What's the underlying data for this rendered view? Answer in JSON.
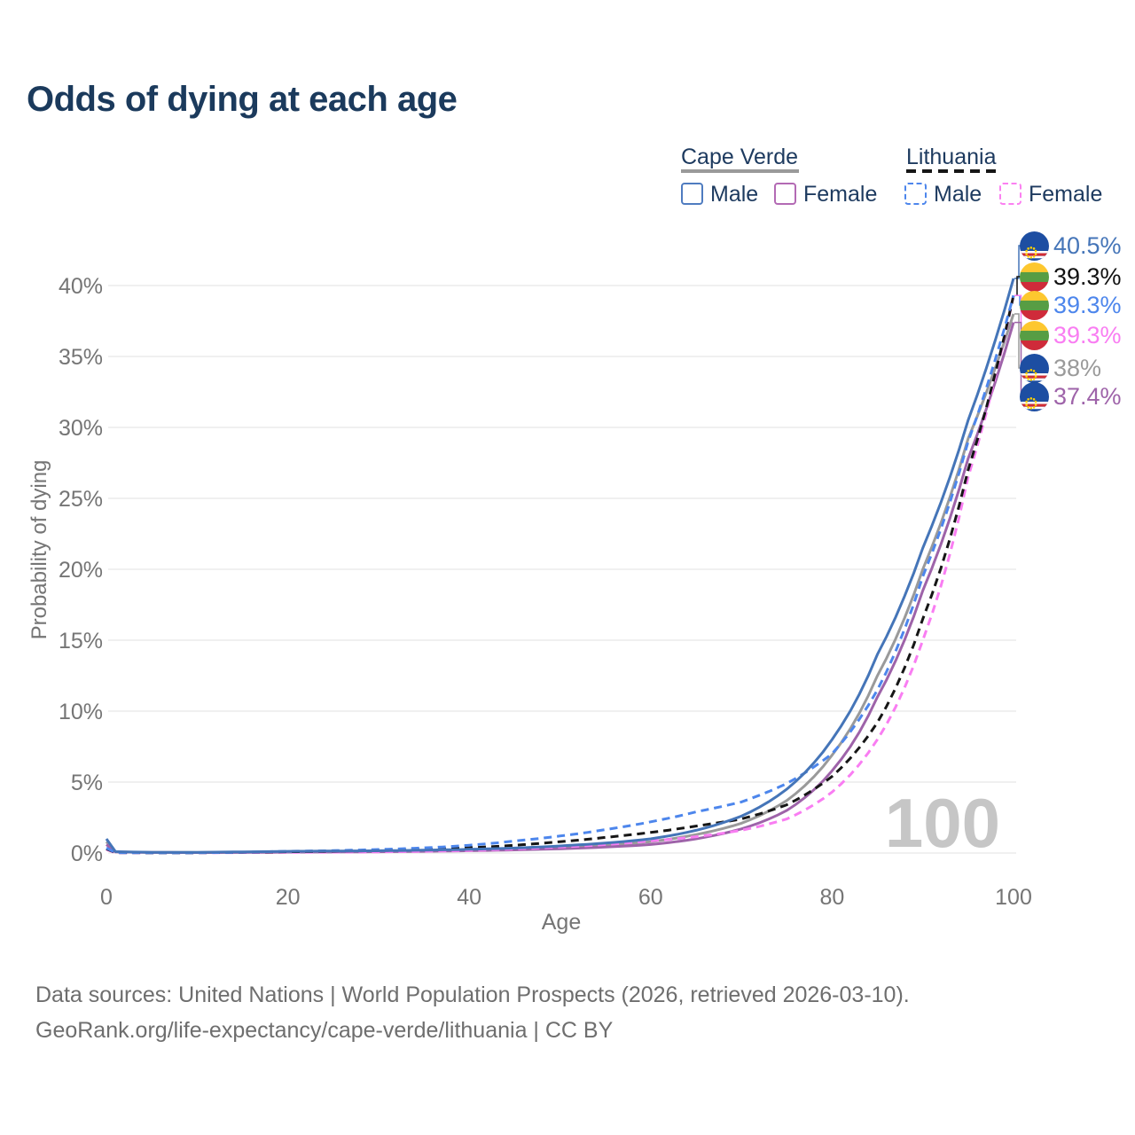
{
  "title": "Odds of dying at each age",
  "legend": {
    "cape_verde": {
      "name": "Cape Verde",
      "male_label": "Male",
      "female_label": "Female",
      "male_color": "#4f7cc0",
      "female_color": "#b36ab4",
      "underline_color": "#9a9a9a"
    },
    "lithuania": {
      "name": "Lithuania",
      "male_label": "Male",
      "female_label": "Female",
      "male_color": "#4d86ec",
      "female_color": "#fb80f1",
      "underline_color": "#161616"
    }
  },
  "chart_data": {
    "type": "line",
    "title": "Odds of dying at each age",
    "xlabel": "Age",
    "ylabel": "Probability of dying",
    "x_ticks": [
      0,
      20,
      40,
      60,
      80,
      100
    ],
    "y_tick_labels": [
      "0%",
      "5%",
      "10%",
      "15%",
      "20%",
      "25%",
      "30%",
      "35%",
      "40%"
    ],
    "xlim": [
      0,
      100
    ],
    "ylim_pct": [
      0,
      40
    ],
    "grid": "horizontal-only",
    "watermark": "100",
    "ages": [
      0,
      1,
      5,
      10,
      15,
      20,
      25,
      30,
      35,
      40,
      45,
      50,
      55,
      60,
      65,
      70,
      75,
      80,
      85,
      90,
      95,
      100
    ],
    "series": [
      {
        "id": "cape-verde-both",
        "name": "Cape Verde",
        "color": "#9a9a9a",
        "dashed": false,
        "values": [
          0.8,
          0.09,
          0.045,
          0.04,
          0.06,
          0.09,
          0.1,
          0.12,
          0.16,
          0.21,
          0.28,
          0.4,
          0.55,
          0.8,
          1.3,
          2.1,
          3.7,
          6.9,
          12.5,
          20.0,
          29.2,
          38.0
        ]
      },
      {
        "id": "cape-verde-female",
        "name": "Cape Verde Female",
        "color": "#9e63a9",
        "dashed": false,
        "values": [
          0.6,
          0.08,
          0.04,
          0.03,
          0.04,
          0.06,
          0.07,
          0.09,
          0.12,
          0.16,
          0.22,
          0.3,
          0.42,
          0.6,
          1.0,
          1.7,
          3.0,
          5.8,
          11.0,
          18.5,
          27.8,
          37.4
        ]
      },
      {
        "id": "lithuania-female",
        "name": "Lithuania Female",
        "color": "#f97df2",
        "dashed": true,
        "values": [
          0.25,
          0.02,
          0.015,
          0.015,
          0.03,
          0.05,
          0.06,
          0.08,
          0.12,
          0.18,
          0.28,
          0.42,
          0.6,
          0.85,
          1.15,
          1.6,
          2.4,
          4.3,
          8.0,
          15.0,
          26.5,
          39.3
        ]
      },
      {
        "id": "lithuania-both",
        "name": "Lithuania",
        "color": "#161616",
        "dashed": true,
        "values": [
          0.3,
          0.025,
          0.02,
          0.02,
          0.05,
          0.09,
          0.12,
          0.17,
          0.25,
          0.37,
          0.55,
          0.8,
          1.1,
          1.45,
          1.9,
          2.4,
          3.4,
          5.4,
          9.2,
          16.5,
          27.0,
          39.3
        ]
      },
      {
        "id": "lithuania-male",
        "name": "Lithuania Male",
        "color": "#4d86ec",
        "dashed": true,
        "values": [
          0.35,
          0.03,
          0.02,
          0.02,
          0.06,
          0.12,
          0.17,
          0.25,
          0.36,
          0.55,
          0.85,
          1.2,
          1.65,
          2.2,
          2.9,
          3.6,
          4.9,
          7.0,
          11.5,
          19.5,
          29.0,
          39.3
        ]
      },
      {
        "id": "cape-verde-male",
        "name": "Cape Verde Male",
        "color": "#4575b8",
        "dashed": false,
        "values": [
          1.0,
          0.1,
          0.05,
          0.05,
          0.08,
          0.12,
          0.14,
          0.16,
          0.2,
          0.26,
          0.35,
          0.5,
          0.7,
          1.0,
          1.6,
          2.6,
          4.5,
          8.0,
          14.0,
          21.5,
          30.5,
          40.5
        ]
      }
    ],
    "end_labels": [
      {
        "series": "cape-verde-male",
        "flag": "cape-verde",
        "text": "40.5%",
        "color": "#4575b8"
      },
      {
        "series": "lithuania-both",
        "flag": "lithuania",
        "text": "39.3%",
        "color": "#111111"
      },
      {
        "series": "lithuania-male",
        "flag": "lithuania",
        "text": "39.3%",
        "color": "#4d86ec"
      },
      {
        "series": "lithuania-female",
        "flag": "lithuania",
        "text": "39.3%",
        "color": "#f97df2"
      },
      {
        "series": "cape-verde-both",
        "flag": "cape-verde",
        "text": "38%",
        "color": "#9a9a9a"
      },
      {
        "series": "cape-verde-female",
        "flag": "cape-verde",
        "text": "37.4%",
        "color": "#9e63a9"
      }
    ]
  },
  "footer": {
    "line1": "Data sources: United Nations | World Population Prospects (2026, retrieved 2026-03-10).",
    "line2": "GeoRank.org/life-expectancy/cape-verde/lithuania | CC BY"
  }
}
